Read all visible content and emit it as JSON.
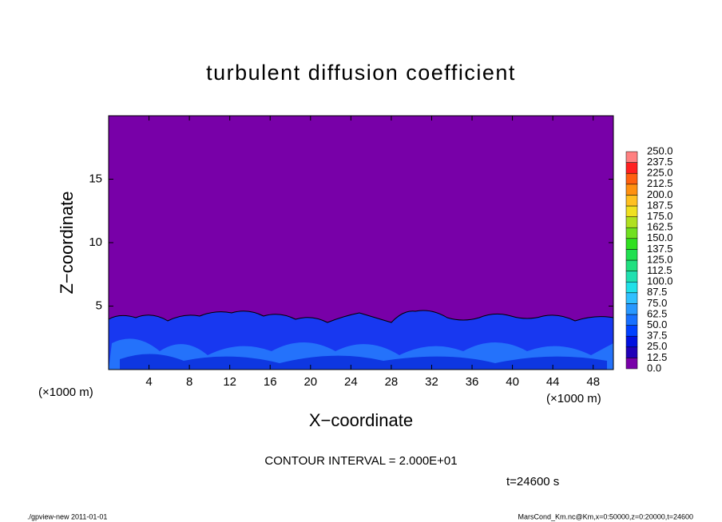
{
  "chart_data": {
    "type": "contour",
    "title": "turbulent diffusion coefficient",
    "xlabel": "X−coordinate",
    "ylabel": "Z−coordinate",
    "x_unit": "(×1000 m)",
    "xlim": [
      0,
      50
    ],
    "xticks": [
      4,
      8,
      12,
      16,
      20,
      24,
      28,
      32,
      36,
      40,
      44,
      48
    ],
    "ylim": [
      0,
      20
    ],
    "yticks": [
      5,
      10,
      15
    ],
    "contour_interval": "CONTOUR INTERVAL = 2.000E+01",
    "time": "t=24600 s",
    "colorbar": {
      "levels": [
        {
          "value": 0,
          "label": "0.0"
        },
        {
          "value": 12.5,
          "label": "12.5"
        },
        {
          "value": 25,
          "label": "25.0"
        },
        {
          "value": 37.5,
          "label": "37.5"
        },
        {
          "value": 50,
          "label": "50.0"
        },
        {
          "value": 62.5,
          "label": "62.5"
        },
        {
          "value": 75,
          "label": "75.0"
        },
        {
          "value": 87.5,
          "label": "87.5"
        },
        {
          "value": 100,
          "label": "100.0"
        },
        {
          "value": 112.5,
          "label": "112.5"
        },
        {
          "value": 125,
          "label": "125.0"
        },
        {
          "value": 137.5,
          "label": "137.5"
        },
        {
          "value": 150,
          "label": "150.0"
        },
        {
          "value": 162.5,
          "label": "162.5"
        },
        {
          "value": 175,
          "label": "175.0"
        },
        {
          "value": 187.5,
          "label": "187.5"
        },
        {
          "value": 200,
          "label": "200.0"
        },
        {
          "value": 212.5,
          "label": "212.5"
        },
        {
          "value": 225,
          "label": "225.0"
        },
        {
          "value": 237.5,
          "label": "237.5"
        },
        {
          "value": 250,
          "label": "250.0"
        }
      ],
      "colors": [
        "#7800a8",
        "#2000b8",
        "#0010e0",
        "#0040ff",
        "#1870ff",
        "#2898ff",
        "#30c0ff",
        "#20e0e8",
        "#20e0b0",
        "#20e080",
        "#20e050",
        "#30e020",
        "#70e020",
        "#b0e020",
        "#f0e020",
        "#ffc020",
        "#ff9010",
        "#ff6010",
        "#ff2020",
        "#ff8080"
      ]
    },
    "footer_left": "./gpview-new   2011-01-01",
    "footer_right": "MarsCond_Km.nc@Km,x=0:50000,z=0:20000,t=24600"
  }
}
